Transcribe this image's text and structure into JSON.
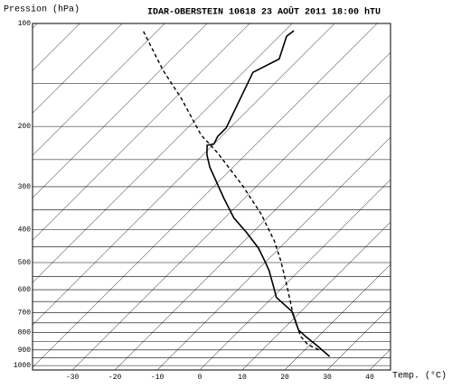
{
  "chart_data": {
    "type": "skew-t",
    "title": "IDAR-OBERSTEIN 10618 23 AOÛT 2011 18:00 hTU",
    "ylabel": "Pression (hPa)",
    "xlabel": "Temp. (°C)",
    "ylog": true,
    "ylim": [
      1030,
      100
    ],
    "yticks": [
      100,
      200,
      300,
      400,
      500,
      600,
      700,
      800,
      900,
      1000
    ],
    "minor_yticks": [
      150,
      250,
      350,
      450,
      550,
      650,
      750,
      850,
      950
    ],
    "xlim": [
      -39.4,
      44.9
    ],
    "xticks": [
      -30,
      -20,
      -10,
      0,
      10,
      20,
      30,
      40
    ],
    "grid": true,
    "series": [
      {
        "color": "#000000",
        "style": "solid",
        "x": [
          27.4,
          21.9,
          17.2,
          13.8,
          7.9,
          0.9,
          -2.3,
          -7.2,
          -10.4,
          -14.9,
          -21.5,
          -27.9,
          -34.9,
          -45.5,
          -49.1,
          -51.3,
          -50.0,
          -50.9,
          -50.9,
          -57.7,
          -54.7,
          -58.3,
          -57.9
        ],
        "values": [
          941,
          875,
          824,
          787,
          695,
          632,
          588,
          527,
          495,
          454,
          408,
          370,
          324,
          263,
          242,
          227,
          225,
          214,
          202,
          139,
          127,
          109,
          105
        ]
      },
      {
        "color": "#000000",
        "style": "dashed",
        "x": [
          23.2,
          19.4,
          15.7,
          7.9,
          0.9,
          -6.6,
          -12.8,
          -22.3,
          -33.4,
          -47.0,
          -55.1,
          -68.3,
          -79.4,
          -93.4
        ],
        "values": [
          899,
          868,
          820,
          693,
          588,
          495,
          433,
          361,
          298,
          239,
          212,
          166,
          137,
          105
        ]
      }
    ]
  }
}
